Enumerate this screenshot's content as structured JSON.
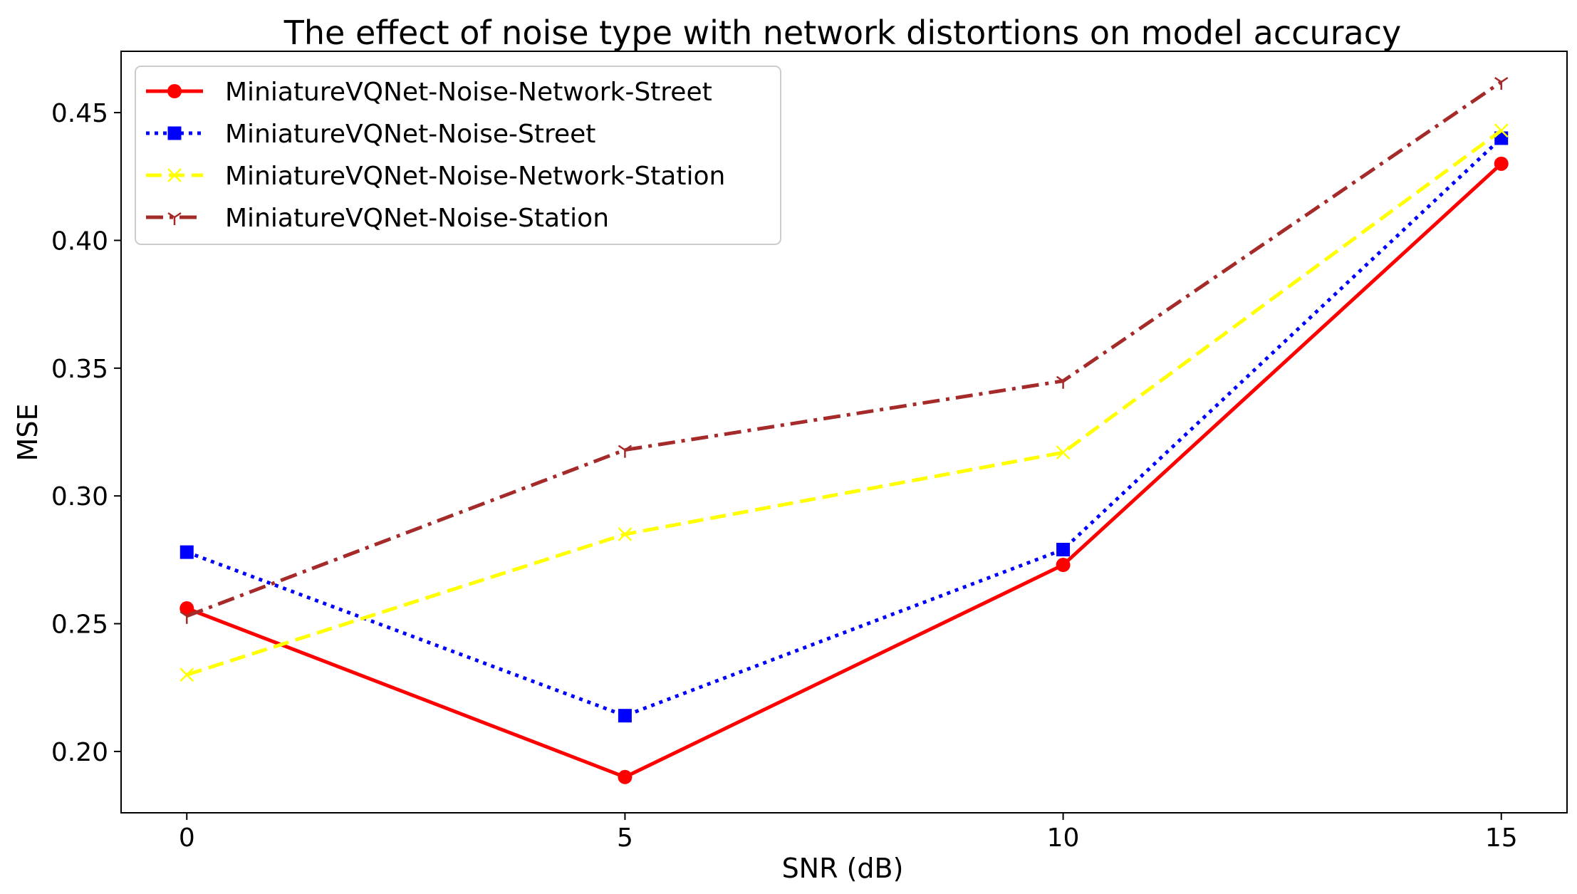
{
  "chart_data": {
    "type": "line",
    "title": "The effect of noise type with network distortions on model accuracy",
    "xlabel": "SNR (dB)",
    "ylabel": "MSE",
    "x": [
      0,
      5,
      10,
      15
    ],
    "xlim": [
      -0.75,
      15.75
    ],
    "ylim": [
      0.176,
      0.474
    ],
    "xticks": [
      0,
      5,
      10,
      15
    ],
    "xtick_labels": [
      "0",
      "5",
      "10",
      "15"
    ],
    "yticks": [
      0.2,
      0.25,
      0.3,
      0.35,
      0.4,
      0.45
    ],
    "ytick_labels": [
      "0.20",
      "0.25",
      "0.30",
      "0.35",
      "0.40",
      "0.45"
    ],
    "grid": false,
    "legend_position": "top-left",
    "series": [
      {
        "name": "MiniatureVQNet-Noise-Network-Street",
        "values": [
          0.256,
          0.19,
          0.273,
          0.43
        ],
        "color": "#ff0000",
        "line_style": "solid",
        "marker": "circle"
      },
      {
        "name": "MiniatureVQNet-Noise-Street",
        "values": [
          0.278,
          0.214,
          0.279,
          0.44
        ],
        "color": "#0000ff",
        "line_style": "dotted",
        "marker": "square"
      },
      {
        "name": "MiniatureVQNet-Noise-Network-Station",
        "values": [
          0.23,
          0.285,
          0.317,
          0.443
        ],
        "color": "#ffff00",
        "line_style": "dashed",
        "marker": "x"
      },
      {
        "name": "MiniatureVQNet-Noise-Station",
        "values": [
          0.253,
          0.318,
          0.345,
          0.462
        ],
        "color": "#a52a2a",
        "line_style": "dashdot",
        "marker": "tri-down"
      }
    ]
  }
}
